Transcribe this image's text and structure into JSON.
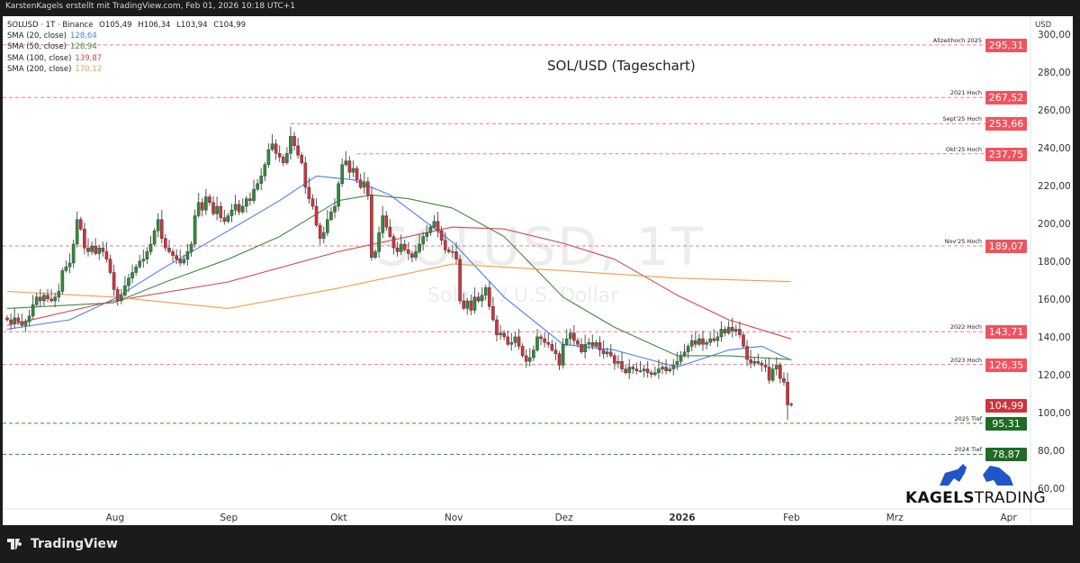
{
  "header": {
    "caption": "KarstenKagels erstellt mit TradingView.com, Feb 01, 2026 10:18 UTC+1"
  },
  "legend": {
    "symbol_line": "SOLUSD · 1T · Binance",
    "ohlc": {
      "o": "O105,49",
      "h": "H106,34",
      "l": "L103,94",
      "c": "C104,99"
    },
    "smas": [
      {
        "label": "SMA (20, close)",
        "value": "128,64",
        "color": "#4a7cf0"
      },
      {
        "label": "SMA (50, close)",
        "value": "128,94",
        "color": "#3f8a3f"
      },
      {
        "label": "SMA (100, close)",
        "value": "139,87",
        "color": "#d6454f"
      },
      {
        "label": "SMA (200, close)",
        "value": "170,12",
        "color": "#f59b45"
      }
    ]
  },
  "title": "SOL/USD (Tageschart)",
  "watermark": {
    "symbol": "SOLUSD, 1T",
    "name": "Solana / U.S. Dollar"
  },
  "brand": {
    "bold": "KAGELS",
    "light": "TRADING"
  },
  "footer": {
    "logo": "TradingView"
  },
  "colors": {
    "up": "#2e8b3a",
    "down": "#d1323c",
    "resistance": "#f2525e",
    "support": "#1f6b24",
    "last": "#d1323c"
  },
  "chart_data": {
    "type": "candlestick",
    "title": "SOL/USD (Tageschart)",
    "currency": "USD",
    "ylim": [
      50,
      305
    ],
    "y_ticks": [
      "300,00",
      "280,00",
      "260,00",
      "240,00",
      "220,00",
      "200,00",
      "180,00",
      "160,00",
      "140,00",
      "120,00",
      "100,00",
      "80,00",
      "60,00"
    ],
    "y_tick_values": [
      300,
      280,
      260,
      240,
      220,
      200,
      180,
      160,
      140,
      120,
      100,
      80,
      60
    ],
    "start_date": "2025-07-03",
    "x_ticks": [
      {
        "label": "Aug",
        "date": "2025-08-01"
      },
      {
        "label": "Sep",
        "date": "2025-09-01"
      },
      {
        "label": "Okt",
        "date": "2025-10-01"
      },
      {
        "label": "Nov",
        "date": "2025-11-01"
      },
      {
        "label": "Dez",
        "date": "2025-12-01"
      },
      {
        "label": "2026",
        "date": "2026-01-01"
      },
      {
        "label": "Feb",
        "date": "2026-02-01"
      },
      {
        "label": "Mrz",
        "date": "2026-03-01"
      },
      {
        "label": "Apr",
        "date": "2026-04-01"
      }
    ],
    "closes": [
      150,
      148,
      151,
      149,
      147,
      149,
      152,
      158,
      162,
      160,
      163,
      161,
      160,
      162,
      165,
      176,
      178,
      180,
      190,
      203,
      198,
      188,
      186,
      189,
      185,
      188,
      186,
      182,
      175,
      166,
      160,
      163,
      168,
      172,
      175,
      178,
      181,
      182,
      186,
      190,
      197,
      203,
      193,
      188,
      186,
      184,
      182,
      180,
      182,
      186,
      190,
      205,
      212,
      208,
      215,
      212,
      206,
      210,
      204,
      202,
      205,
      208,
      211,
      207,
      210,
      214,
      213,
      219,
      222,
      226,
      232,
      240,
      243,
      238,
      236,
      233,
      238,
      247,
      242,
      237,
      233,
      220,
      214,
      210,
      200,
      193,
      196,
      203,
      207,
      210,
      222,
      232,
      234,
      228,
      230,
      224,
      220,
      223,
      216,
      183,
      186,
      196,
      205,
      199,
      194,
      188,
      186,
      190,
      187,
      185,
      183,
      186,
      190,
      194,
      196,
      199,
      202,
      197,
      192,
      187,
      186,
      186,
      182,
      160,
      156,
      160,
      155,
      162,
      160,
      163,
      167,
      157,
      150,
      142,
      143,
      141,
      137,
      138,
      141,
      136,
      131,
      128,
      130,
      134,
      141,
      140,
      138,
      137,
      134,
      132,
      126,
      137,
      140,
      143,
      139,
      137,
      133,
      137,
      138,
      136,
      138,
      134,
      132,
      133,
      131,
      127,
      128,
      124,
      122,
      125,
      124,
      123,
      123,
      124,
      122,
      121,
      122,
      124,
      125,
      123,
      124,
      126,
      128,
      131,
      133,
      136,
      139,
      137,
      140,
      137,
      138,
      140,
      139,
      141,
      145,
      143,
      146,
      144,
      145,
      142,
      136,
      129,
      127,
      128,
      127,
      126,
      125,
      118,
      124,
      126,
      119,
      117,
      105,
      104.99
    ],
    "last": {
      "open": 105.49,
      "high": 106.34,
      "low": 103.94,
      "close": 104.99
    },
    "series": [
      {
        "name": "SMA (20, close)",
        "color": "#4a7cf0",
        "points": [
          [
            "2025-07-03",
            145
          ],
          [
            "2025-07-20",
            150
          ],
          [
            "2025-08-01",
            161
          ],
          [
            "2025-08-15",
            178
          ],
          [
            "2025-09-01",
            197
          ],
          [
            "2025-09-15",
            213
          ],
          [
            "2025-09-25",
            226
          ],
          [
            "2025-10-05",
            224
          ],
          [
            "2025-10-15",
            216
          ],
          [
            "2025-11-01",
            191
          ],
          [
            "2025-11-15",
            162
          ],
          [
            "2025-12-01",
            137
          ],
          [
            "2025-12-15",
            134
          ],
          [
            "2026-01-01",
            125
          ],
          [
            "2026-01-15",
            134
          ],
          [
            "2026-01-24",
            136
          ],
          [
            "2026-02-01",
            128.64
          ]
        ]
      },
      {
        "name": "SMA (50, close)",
        "color": "#3f8a3f",
        "points": [
          [
            "2025-07-03",
            156
          ],
          [
            "2025-08-01",
            159
          ],
          [
            "2025-08-15",
            170
          ],
          [
            "2025-09-01",
            182
          ],
          [
            "2025-09-15",
            194
          ],
          [
            "2025-10-01",
            213
          ],
          [
            "2025-10-10",
            216
          ],
          [
            "2025-10-20",
            214
          ],
          [
            "2025-11-01",
            209
          ],
          [
            "2025-11-15",
            194
          ],
          [
            "2025-12-01",
            162
          ],
          [
            "2025-12-15",
            146
          ],
          [
            "2026-01-01",
            131
          ],
          [
            "2026-01-15",
            131
          ],
          [
            "2026-02-01",
            128.94
          ]
        ]
      },
      {
        "name": "SMA (100, close)",
        "color": "#d6454f",
        "points": [
          [
            "2025-07-03",
            147
          ],
          [
            "2025-08-01",
            160
          ],
          [
            "2025-09-01",
            170
          ],
          [
            "2025-10-01",
            186
          ],
          [
            "2025-11-01",
            199
          ],
          [
            "2025-11-15",
            198
          ],
          [
            "2025-12-01",
            190.5
          ],
          [
            "2025-12-15",
            182
          ],
          [
            "2026-01-01",
            163
          ],
          [
            "2026-01-15",
            150
          ],
          [
            "2026-02-01",
            139.87
          ]
        ]
      },
      {
        "name": "SMA (200, close)",
        "color": "#f59b45",
        "points": [
          [
            "2025-07-03",
            165
          ],
          [
            "2025-08-01",
            162
          ],
          [
            "2025-09-01",
            156
          ],
          [
            "2025-10-01",
            166.7
          ],
          [
            "2025-11-01",
            179.5
          ],
          [
            "2025-12-01",
            176
          ],
          [
            "2026-01-01",
            172
          ],
          [
            "2026-02-01",
            170.12
          ]
        ]
      }
    ],
    "levels": [
      {
        "label": "Allzeithoch 2025",
        "value": 295.31,
        "text": "295,31",
        "kind": "resistance"
      },
      {
        "label": "2021 Hoch",
        "value": 267.52,
        "text": "267,52",
        "kind": "resistance"
      },
      {
        "label": "Sept'25 Hoch",
        "value": 253.66,
        "text": "253,66",
        "kind": "resistance",
        "from": "2025-09-18"
      },
      {
        "label": "Okt'25 Hoch",
        "value": 237.75,
        "text": "237,75",
        "kind": "resistance",
        "from": "2025-10-06"
      },
      {
        "label": "Nov'25 Hoch",
        "value": 189.07,
        "text": "189,07",
        "kind": "resistance"
      },
      {
        "label": "2022 Hoch",
        "value": 143.71,
        "text": "143,71",
        "kind": "resistance"
      },
      {
        "label": "2023 Hoch",
        "value": 126.35,
        "text": "126,35",
        "kind": "resistance"
      },
      {
        "label": "2025 Tief",
        "value": 95.31,
        "text": "95,31",
        "kind": "support"
      },
      {
        "label": "2024 Tief",
        "value": 78.87,
        "text": "78,87",
        "kind": "support"
      }
    ],
    "last_price_tag": "104,99"
  }
}
